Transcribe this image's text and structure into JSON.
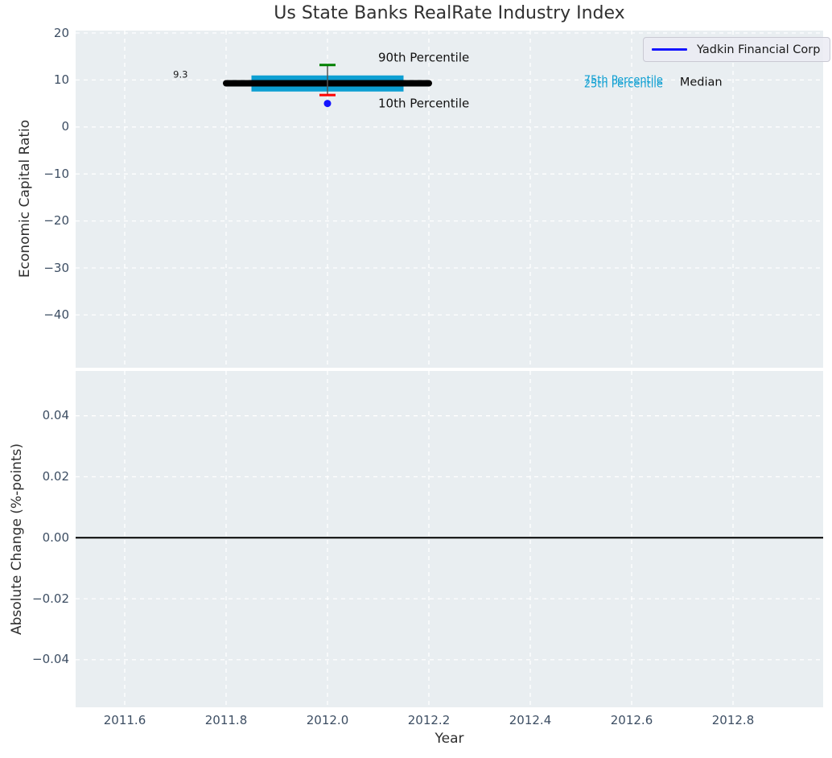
{
  "title": "Us State Banks RealRate Industry Index",
  "colors": {
    "plot_background": "#e9eef1",
    "grid": "#ffffff",
    "tick_label": "#3d4e63",
    "axis_label": "#2e2e2e",
    "median_line": "#000000",
    "iqr_band": "#0d9fd2",
    "p90_cap": "#008000",
    "p10_cap": "#ff0000",
    "whisker_line": "#555555",
    "company_point": "#1414ff",
    "zero_line": "#000000"
  },
  "chart_data": [
    {
      "type": "line",
      "title": "Us State Banks RealRate Industry Index",
      "xlabel": "Year",
      "ylabel": "Economic Capital Ratio",
      "grid": true,
      "x_axis": {
        "label": "Year",
        "tick_labels": [
          "2011.6",
          "2011.8",
          "2012.0",
          "2012.2",
          "2012.4",
          "2012.6",
          "2012.8"
        ],
        "tick_values": [
          2011.6,
          2011.8,
          2012.0,
          2012.2,
          2012.4,
          2012.6,
          2012.8
        ],
        "xlim": [
          2011.5,
          2012.98
        ]
      },
      "y_axis": {
        "tick_labels": [
          "20",
          "10",
          "0",
          "−10",
          "−20",
          "−30",
          "−40"
        ],
        "tick_values": [
          20,
          10,
          0,
          -10,
          -20,
          -30,
          -40
        ],
        "ylim": [
          -51,
          20.5
        ]
      },
      "marks": {
        "median_line": {
          "name": "Median",
          "x": [
            2011.8,
            2012.2
          ],
          "value": 9.3,
          "color": "#000000"
        },
        "iqr_band": {
          "name": "25th-75th Percentile",
          "x": [
            2011.85,
            2012.15
          ],
          "p25": 8.8,
          "p75": 9.7,
          "color": "#0d9fd2"
        },
        "whisker": {
          "name": "10th-90th Percentile",
          "x": 2012.0,
          "p10": 6.8,
          "p90": 13.2,
          "line_color": "#555555",
          "p90_cap_color": "#008000",
          "p10_cap_color": "#ff0000"
        },
        "company_point": {
          "name": "Yadkin Financial Corp",
          "x": 2012.0,
          "value": 5.0,
          "color": "#1414ff"
        }
      },
      "annotations": [
        {
          "name": "median-value-label",
          "text": "9.3",
          "x": 2011.71,
          "y": 11.1,
          "color": "#1a1a1a",
          "size": 11.5,
          "align": "center"
        },
        {
          "name": "p90-label",
          "text": "90th Percentile",
          "x": 2012.1,
          "y": 14.7,
          "color": "#111111",
          "size": 15,
          "align": "left"
        },
        {
          "name": "p10-label",
          "text": "10th Percentile",
          "x": 2012.1,
          "y": 5.0,
          "color": "#111111",
          "size": 15,
          "align": "left"
        },
        {
          "name": "p75-label",
          "text": "75th Percentile",
          "x": 2012.506,
          "y": 9.68,
          "color": "#0d9fd2",
          "size": 13,
          "align": "left"
        },
        {
          "name": "p25-label",
          "text": "25th Percentile",
          "x": 2012.506,
          "y": 8.83,
          "color": "#0d9fd2",
          "size": 13,
          "align": "left"
        },
        {
          "name": "median-label",
          "text": "Median",
          "x": 2012.695,
          "y": 9.34,
          "color": "#111111",
          "size": 14.5,
          "align": "left"
        }
      ],
      "legend": {
        "label": "Yadkin Financial Corp",
        "line_color": "#1414ff",
        "position": "upper right"
      }
    },
    {
      "type": "line",
      "ylabel": "Absolute Change (%-points)",
      "grid": true,
      "y_axis": {
        "tick_labels": [
          "0.04",
          "0.02",
          "0.00",
          "−0.02",
          "−0.04"
        ],
        "tick_values": [
          0.04,
          0.02,
          0.0,
          -0.02,
          -0.04
        ],
        "ylim": [
          -0.055,
          0.055
        ]
      },
      "zero_line": {
        "value": 0.0,
        "color": "#000000"
      }
    }
  ]
}
